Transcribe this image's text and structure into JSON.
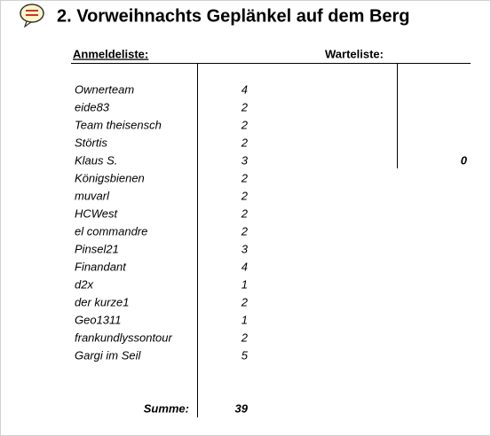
{
  "header": {
    "title": "2. Vorweihnachts Geplänkel auf dem Berg"
  },
  "anmeldeliste": {
    "heading": "Anmeldeliste:",
    "rows": [
      [
        "Ownerteam",
        4
      ],
      [
        "eide83",
        2
      ],
      [
        "Team theisensch",
        2
      ],
      [
        "Störtis",
        2
      ],
      [
        "Klaus S.",
        3
      ],
      [
        "Königsbienen",
        2
      ],
      [
        "muvarl",
        2
      ],
      [
        "HCWest",
        2
      ],
      [
        "el commandre",
        2
      ],
      [
        "Pinsel21",
        3
      ],
      [
        "Finandant",
        4
      ],
      [
        "d2x",
        1
      ],
      [
        "der kurze1",
        2
      ],
      [
        "Geo1311",
        1
      ],
      [
        "frankundlyssontour",
        2
      ],
      [
        "Gargi im Seil",
        5
      ]
    ],
    "sum_label": "Summe:",
    "sum": 39
  },
  "warteliste": {
    "heading": "Warteliste:",
    "count": 0
  }
}
